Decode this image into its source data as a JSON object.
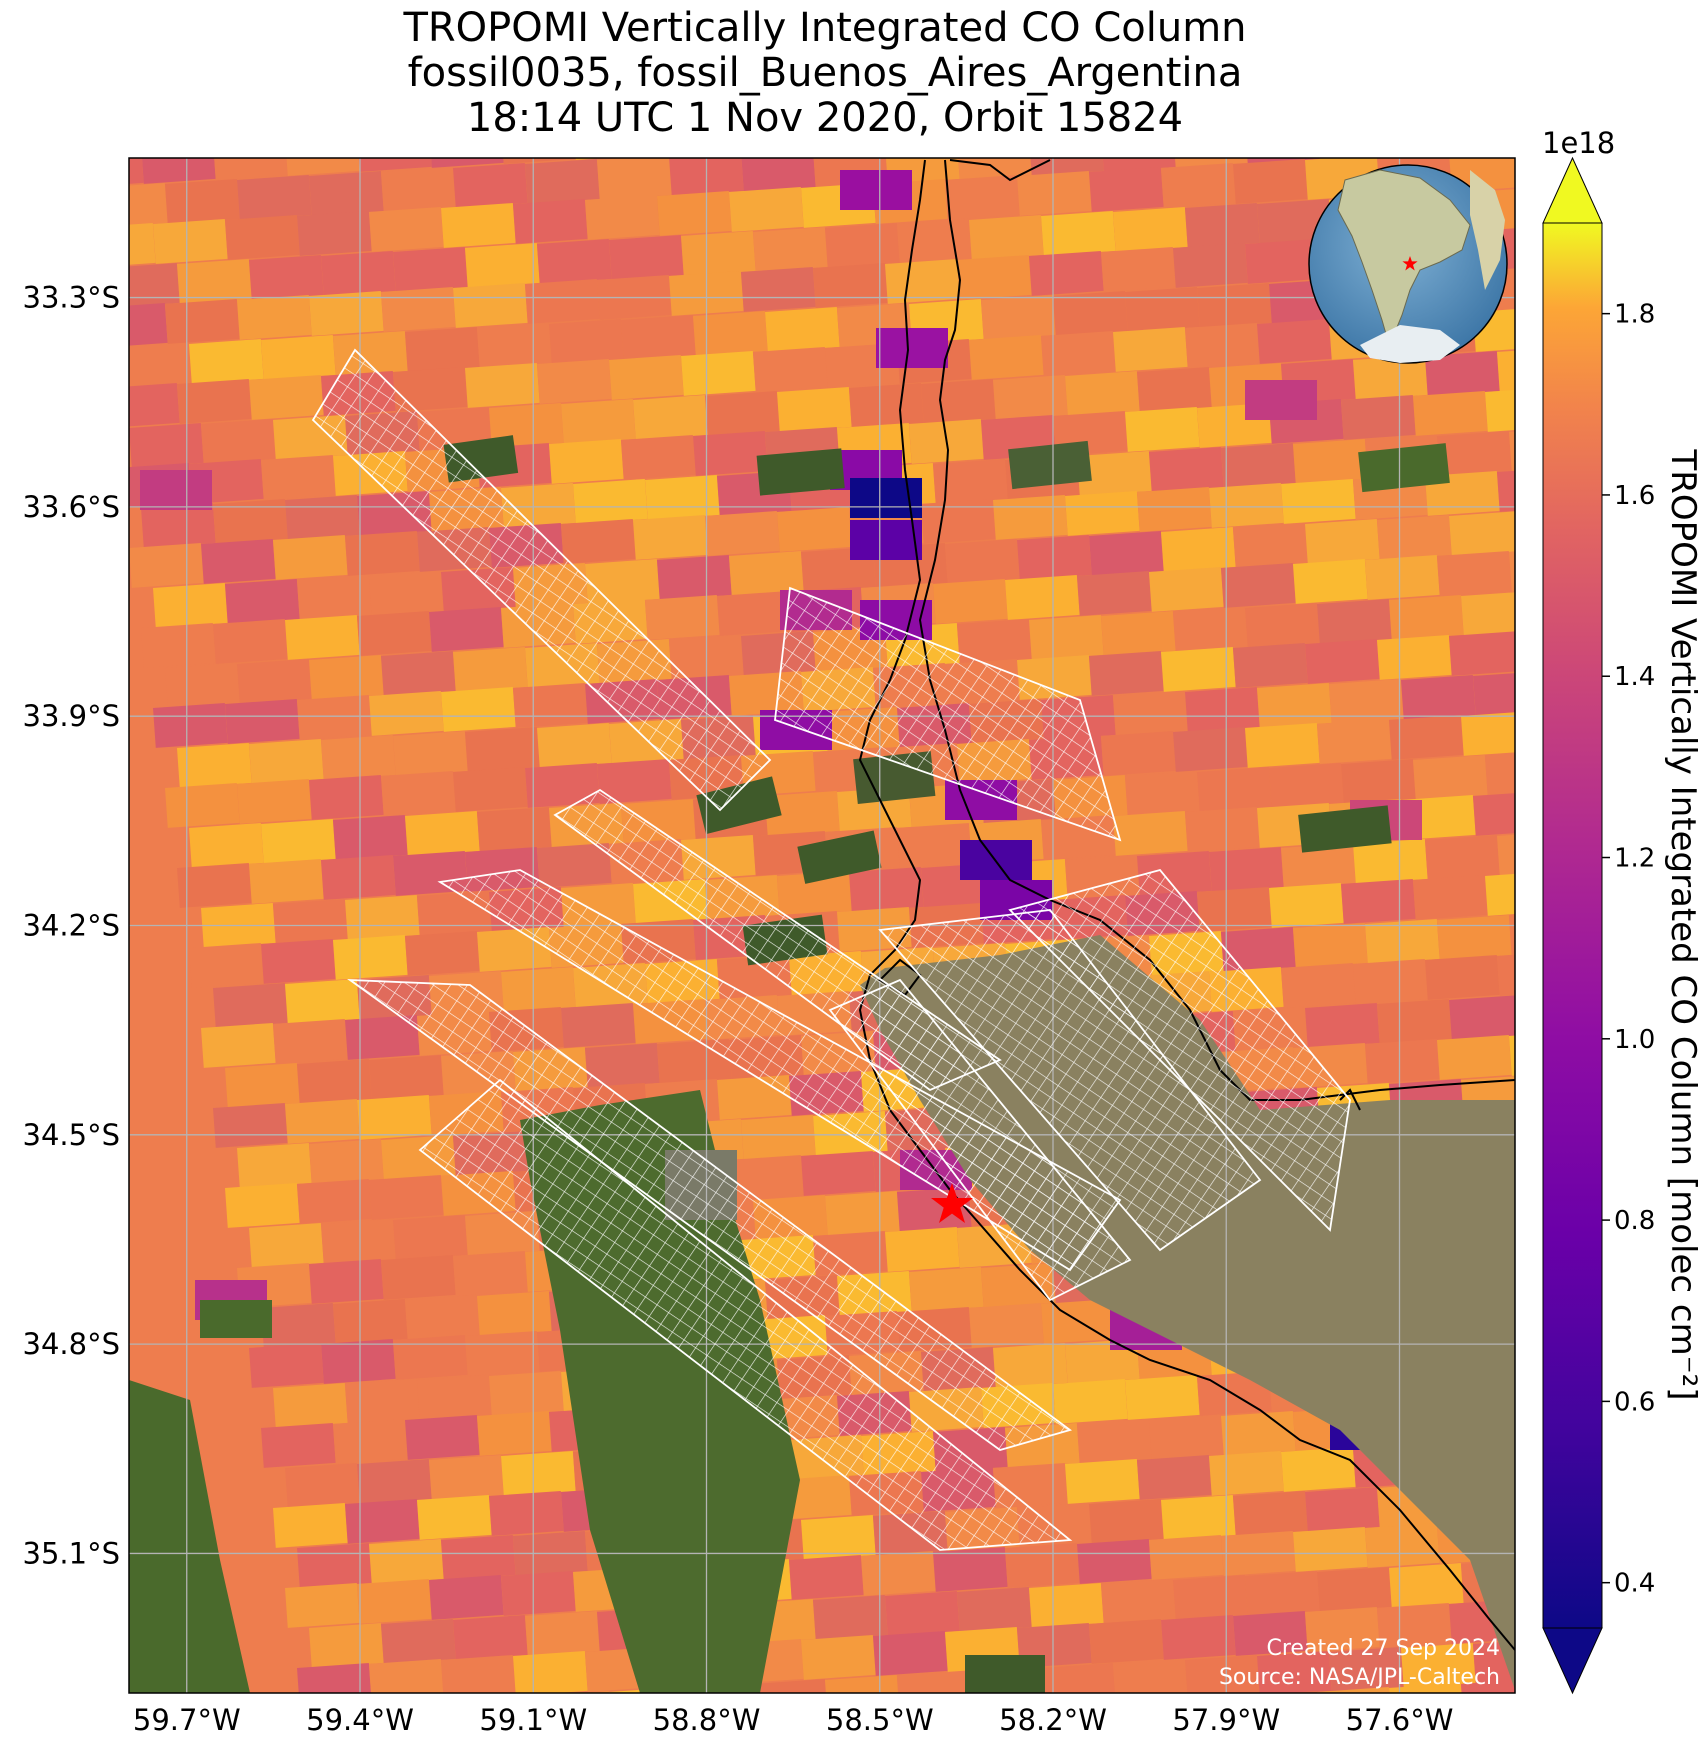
{
  "title": {
    "line1": "TROPOMI Vertically Integrated CO Column",
    "line2": "fossil0035, fossil_Buenos_Aires_Argentina",
    "line3": "18:14 UTC 1 Nov 2020, Orbit 15824"
  },
  "map": {
    "lon_range": [
      -59.8,
      -57.4
    ],
    "lat_range": [
      -35.3,
      -33.1
    ],
    "lat_ticks": [
      {
        "value": -33.3,
        "label": "33.3°S"
      },
      {
        "value": -33.6,
        "label": "33.6°S"
      },
      {
        "value": -33.9,
        "label": "33.9°S"
      },
      {
        "value": -34.2,
        "label": "34.2°S"
      },
      {
        "value": -34.5,
        "label": "34.5°S"
      },
      {
        "value": -34.8,
        "label": "34.8°S"
      },
      {
        "value": -35.1,
        "label": "35.1°S"
      }
    ],
    "lon_ticks": [
      {
        "value": -59.7,
        "label": "59.7°W"
      },
      {
        "value": -59.4,
        "label": "59.4°W"
      },
      {
        "value": -59.1,
        "label": "59.1°W"
      },
      {
        "value": -58.8,
        "label": "58.8°W"
      },
      {
        "value": -58.5,
        "label": "58.5°W"
      },
      {
        "value": -58.2,
        "label": "58.2°W"
      },
      {
        "value": -57.9,
        "label": "57.9°W"
      },
      {
        "value": -57.6,
        "label": "57.6°W"
      }
    ],
    "grid": true,
    "site_marker": {
      "lon": -58.38,
      "lat": -34.61,
      "color": "#ff0000"
    },
    "target_overlays": "white-gridded-swaths"
  },
  "colorbar": {
    "label": "TROPOMI Vertically Integrated CO Column [molec cm⁻²]",
    "multiplier": "1e18",
    "range": [
      0.35,
      1.9
    ],
    "ticks": [
      "0.4",
      "0.6",
      "0.8",
      "1.0",
      "1.2",
      "1.4",
      "1.6",
      "1.8"
    ],
    "colormap": "plasma",
    "extend": "both"
  },
  "inset": {
    "type": "globe",
    "content": "South America",
    "marker_color": "#ff0000"
  },
  "credits": {
    "created": "Created 27 Sep 2024",
    "source": "Source: NASA/JPL-Caltech"
  },
  "colors": {
    "land_green": "#3f5a2a",
    "estuary": "#8a8060",
    "swath_lines": "#ffffff",
    "coast": "#000000"
  }
}
